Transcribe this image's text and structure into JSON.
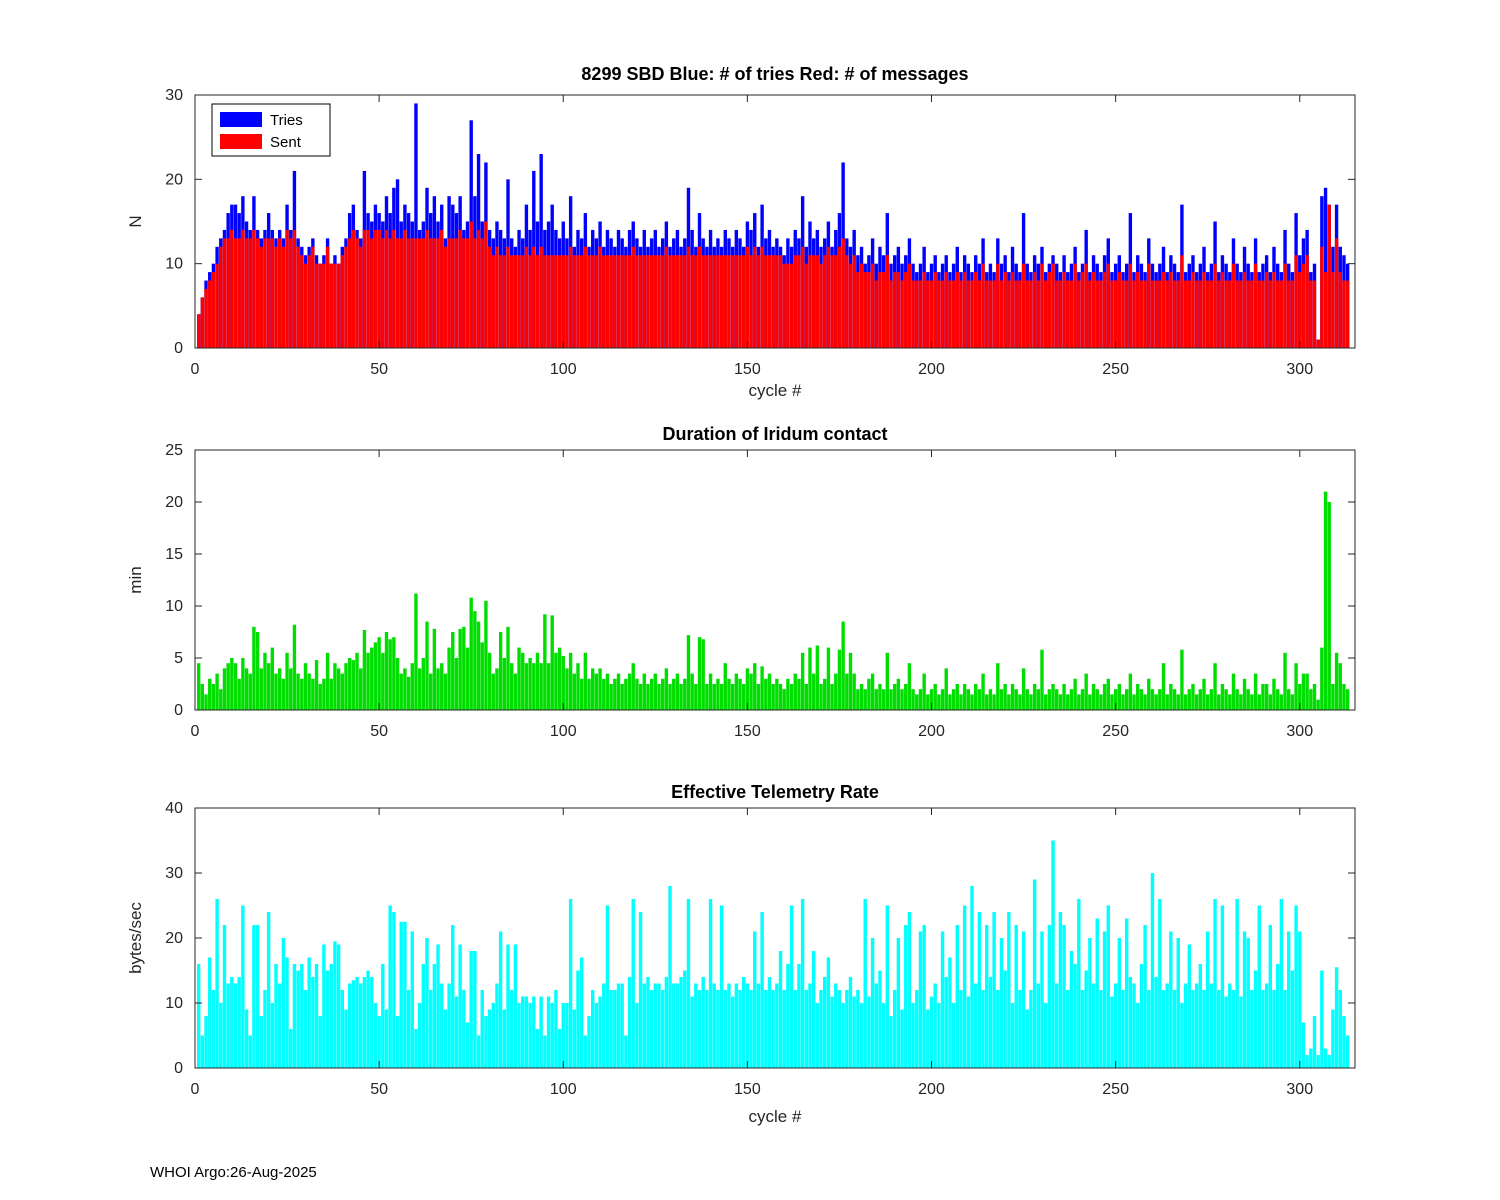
{
  "footer": {
    "text": "WHOI Argo:26-Aug-2025"
  },
  "colors": {
    "tries": "#0000ff",
    "sent": "#ff0000",
    "duration": "#00dd00",
    "rate": "#00ffff",
    "axis": "#262626"
  },
  "chart_data": [
    {
      "type": "bar",
      "title": "8299 SBD  Blue: # of tries   Red: # of messages",
      "xlabel": "cycle #",
      "ylabel": "N",
      "xlim": [
        0,
        315
      ],
      "ylim": [
        0,
        30
      ],
      "xticks": [
        0,
        50,
        100,
        150,
        200,
        250,
        300
      ],
      "yticks": [
        0,
        10,
        20,
        30
      ],
      "grid": false,
      "legend": {
        "position": "northwest",
        "entries": [
          {
            "label": "Tries",
            "color": "#0000ff"
          },
          {
            "label": "Sent",
            "color": "#ff0000"
          }
        ]
      },
      "x_start": 1,
      "series": [
        {
          "name": "Tries",
          "color": "#0000ff",
          "values": [
            4,
            6,
            8,
            9,
            10,
            12,
            13,
            14,
            16,
            17,
            17,
            16,
            18,
            15,
            14,
            18,
            14,
            13,
            14,
            16,
            14,
            13,
            14,
            13,
            17,
            14,
            21,
            13,
            12,
            11,
            12,
            13,
            11,
            10,
            11,
            13,
            10,
            11,
            10,
            12,
            13,
            16,
            17,
            14,
            13,
            21,
            16,
            15,
            17,
            16,
            15,
            18,
            16,
            19,
            20,
            15,
            17,
            16,
            15,
            29,
            14,
            15,
            19,
            16,
            18,
            15,
            17,
            13,
            18,
            17,
            16,
            18,
            14,
            15,
            27,
            18,
            23,
            15,
            22,
            14,
            13,
            15,
            14,
            13,
            20,
            13,
            12,
            14,
            13,
            17,
            14,
            21,
            15,
            23,
            14,
            15,
            17,
            14,
            13,
            15,
            13,
            18,
            12,
            14,
            13,
            16,
            12,
            14,
            13,
            15,
            12,
            14,
            13,
            12,
            14,
            13,
            12,
            14,
            15,
            13,
            12,
            14,
            12,
            13,
            14,
            12,
            13,
            15,
            12,
            13,
            14,
            12,
            13,
            19,
            14,
            12,
            16,
            13,
            12,
            14,
            12,
            13,
            12,
            14,
            13,
            12,
            14,
            13,
            12,
            15,
            14,
            16,
            12,
            17,
            13,
            14,
            12,
            13,
            12,
            11,
            13,
            12,
            14,
            13,
            18,
            12,
            15,
            13,
            14,
            12,
            13,
            15,
            12,
            14,
            16,
            22,
            13,
            12,
            14,
            11,
            12,
            10,
            11,
            13,
            10,
            12,
            11,
            16,
            10,
            11,
            12,
            10,
            11,
            13,
            10,
            9,
            10,
            12,
            9,
            10,
            11,
            9,
            10,
            11,
            9,
            10,
            12,
            9,
            11,
            10,
            9,
            11,
            10,
            13,
            9,
            10,
            9,
            13,
            10,
            11,
            9,
            12,
            10,
            9,
            16,
            10,
            9,
            11,
            10,
            12,
            9,
            10,
            11,
            10,
            9,
            11,
            9,
            10,
            12,
            9,
            10,
            14,
            9,
            11,
            10,
            9,
            11,
            13,
            9,
            10,
            11,
            9,
            10,
            16,
            9,
            11,
            10,
            9,
            13,
            10,
            9,
            10,
            12,
            9,
            11,
            10,
            9,
            17,
            9,
            10,
            11,
            9,
            10,
            12,
            9,
            10,
            15,
            9,
            11,
            10,
            9,
            13,
            10,
            9,
            12,
            10,
            9,
            13,
            9,
            10,
            11,
            9,
            12,
            10,
            9,
            14,
            10,
            9,
            16,
            11,
            13,
            14,
            9,
            10,
            1,
            18,
            19,
            17,
            12,
            17,
            12,
            11,
            10
          ]
        },
        {
          "name": "Sent",
          "color": "#ff0000",
          "values": [
            4,
            6,
            7,
            8,
            9,
            10,
            12,
            13,
            13,
            14,
            13,
            13,
            14,
            13,
            13,
            14,
            13,
            12,
            13,
            13,
            13,
            12,
            13,
            12,
            14,
            13,
            14,
            12,
            11,
            10,
            11,
            12,
            10,
            10,
            10,
            12,
            10,
            10,
            10,
            11,
            12,
            13,
            14,
            13,
            12,
            14,
            14,
            13,
            14,
            14,
            13,
            14,
            13,
            14,
            13,
            13,
            14,
            13,
            13,
            13,
            13,
            13,
            14,
            13,
            13,
            13,
            14,
            12,
            13,
            13,
            13,
            14,
            13,
            13,
            15,
            13,
            14,
            13,
            15,
            12,
            11,
            12,
            11,
            11,
            12,
            11,
            11,
            11,
            11,
            12,
            11,
            12,
            11,
            12,
            11,
            11,
            11,
            11,
            11,
            11,
            11,
            12,
            11,
            11,
            11,
            12,
            11,
            11,
            11,
            12,
            11,
            11,
            11,
            11,
            11,
            11,
            11,
            11,
            12,
            11,
            11,
            11,
            11,
            11,
            11,
            11,
            11,
            12,
            11,
            11,
            11,
            11,
            11,
            12,
            11,
            11,
            12,
            11,
            11,
            11,
            11,
            11,
            11,
            11,
            11,
            11,
            11,
            11,
            11,
            12,
            11,
            12,
            11,
            12,
            11,
            11,
            11,
            11,
            11,
            10,
            10,
            10,
            11,
            11,
            12,
            10,
            11,
            11,
            11,
            10,
            11,
            12,
            11,
            11,
            12,
            13,
            11,
            10,
            11,
            9,
            10,
            9,
            9,
            10,
            8,
            9,
            9,
            11,
            8,
            9,
            9,
            8,
            9,
            10,
            8,
            8,
            8,
            9,
            8,
            8,
            9,
            8,
            8,
            9,
            8,
            8,
            9,
            8,
            9,
            8,
            8,
            9,
            8,
            10,
            8,
            8,
            8,
            10,
            8,
            9,
            8,
            9,
            8,
            8,
            10,
            8,
            8,
            9,
            8,
            10,
            8,
            9,
            10,
            8,
            8,
            9,
            8,
            8,
            10,
            8,
            9,
            10,
            8,
            9,
            8,
            8,
            9,
            10,
            8,
            8,
            9,
            8,
            8,
            10,
            8,
            9,
            8,
            8,
            10,
            8,
            8,
            8,
            9,
            8,
            9,
            8,
            8,
            11,
            8,
            8,
            9,
            8,
            8,
            9,
            8,
            8,
            10,
            8,
            9,
            8,
            8,
            10,
            8,
            8,
            9,
            8,
            8,
            10,
            8,
            8,
            9,
            8,
            9,
            8,
            8,
            10,
            8,
            8,
            11,
            9,
            10,
            11,
            8,
            8,
            1,
            12,
            9,
            17,
            9,
            13,
            9,
            8,
            8
          ]
        }
      ]
    },
    {
      "type": "bar",
      "title": "Duration of Iridum contact",
      "xlabel": "",
      "ylabel": "min",
      "xlim": [
        0,
        315
      ],
      "ylim": [
        0,
        25
      ],
      "xticks": [
        0,
        50,
        100,
        150,
        200,
        250,
        300
      ],
      "yticks": [
        0,
        5,
        10,
        15,
        20,
        25
      ],
      "grid": false,
      "x_start": 1,
      "color": "#00dd00",
      "name": "duration",
      "values": [
        4.5,
        2.5,
        1.5,
        3,
        2.5,
        3.5,
        2,
        4,
        4.5,
        5,
        4.5,
        3,
        5,
        4,
        3.5,
        8,
        7.5,
        4,
        5.5,
        4.5,
        6,
        3.5,
        4,
        3,
        5.5,
        4,
        8.2,
        3.5,
        3,
        4.5,
        3.5,
        3,
        4.8,
        2.5,
        3,
        5.5,
        3,
        4.5,
        4,
        3.5,
        4.5,
        5,
        4.8,
        5.5,
        4,
        7.7,
        5.5,
        6,
        6.5,
        7,
        5.5,
        7.5,
        6.8,
        7,
        5,
        3.5,
        4,
        3.2,
        4.5,
        11.2,
        4,
        5,
        8.5,
        3.5,
        7.8,
        4,
        4.5,
        3.5,
        6,
        7.5,
        5,
        7.8,
        8,
        6,
        10.8,
        9.5,
        8.5,
        6.5,
        10.5,
        5.5,
        3.5,
        4,
        7.5,
        5,
        8,
        4.5,
        3.5,
        6,
        5.5,
        4.5,
        5,
        4.5,
        5.5,
        4.5,
        9.2,
        4.5,
        9.1,
        5.5,
        6,
        5.2,
        4,
        5.5,
        3.5,
        4.5,
        3,
        5.5,
        3,
        4,
        3.5,
        4,
        3,
        3.5,
        2.5,
        3,
        3.5,
        2.5,
        3,
        3.5,
        4.5,
        3,
        2.5,
        3.5,
        2.5,
        3,
        3.5,
        2.5,
        3,
        4,
        2.5,
        3,
        3.5,
        2.5,
        3,
        7.2,
        3.5,
        2.5,
        7,
        6.8,
        2.5,
        3.5,
        2.5,
        3,
        2.5,
        4.5,
        3,
        2.5,
        3.5,
        3,
        2.5,
        4,
        3.5,
        4.5,
        2.5,
        4.2,
        3,
        3.5,
        2.5,
        3,
        2.5,
        2,
        3,
        2.5,
        3.5,
        3,
        5.5,
        2.5,
        6,
        3.5,
        6.2,
        2.5,
        3,
        6,
        2.5,
        3.5,
        5.8,
        8.5,
        3.5,
        5.5,
        3.5,
        2,
        2.5,
        2,
        3,
        3.5,
        2,
        2.5,
        2,
        5.5,
        2,
        2.5,
        3,
        2,
        2.5,
        4.5,
        2,
        1.5,
        2,
        3.5,
        1.5,
        2,
        2.5,
        1.5,
        2,
        4,
        1.5,
        2,
        2.5,
        1.5,
        2.5,
        2,
        1.5,
        2.5,
        2,
        3.5,
        1.5,
        2,
        1.5,
        4.5,
        2,
        2.5,
        1.5,
        2.5,
        2,
        1.5,
        4,
        2,
        1.5,
        2.5,
        2,
        5.8,
        1.5,
        2,
        2.5,
        2,
        1.5,
        2.5,
        1.5,
        2,
        3,
        1.5,
        2,
        3.5,
        1.5,
        2.5,
        2,
        1.5,
        2.5,
        3,
        1.5,
        2,
        2.5,
        1.5,
        2,
        3.5,
        1.5,
        2.5,
        2,
        1.5,
        3,
        2,
        1.5,
        2,
        4.5,
        1.5,
        2.5,
        2,
        1.5,
        5.8,
        1.5,
        2,
        2.5,
        1.5,
        2,
        3,
        1.5,
        2,
        4.5,
        1.5,
        2.5,
        2,
        1.5,
        3.5,
        2,
        1.5,
        3,
        2,
        1.5,
        3.5,
        1.5,
        2.5,
        2.5,
        1.5,
        3,
        2,
        1.5,
        5.5,
        2,
        1.5,
        4.5,
        2.5,
        3.5,
        3.5,
        2,
        2.5,
        1,
        6,
        21,
        20,
        2.5,
        5.5,
        4.5,
        2.5,
        2
      ]
    },
    {
      "type": "bar",
      "title": "Effective Telemetry Rate",
      "xlabel": "cycle #",
      "ylabel": "bytes/sec",
      "xlim": [
        0,
        315
      ],
      "ylim": [
        0,
        40
      ],
      "xticks": [
        0,
        50,
        100,
        150,
        200,
        250,
        300
      ],
      "yticks": [
        0,
        10,
        20,
        30,
        40
      ],
      "grid": false,
      "x_start": 1,
      "color": "#00ffff",
      "name": "rate",
      "values": [
        16,
        5,
        8,
        17,
        12,
        26,
        10,
        22,
        13,
        14,
        13,
        14,
        25,
        9,
        5,
        22,
        22,
        8,
        12,
        24,
        10,
        16,
        13,
        20,
        17,
        6,
        16,
        15,
        16,
        12,
        17,
        14,
        16,
        8,
        19,
        15,
        16,
        19.5,
        19,
        12,
        9,
        13,
        13.5,
        14,
        13,
        14,
        15,
        14,
        10,
        8,
        16,
        9,
        25,
        24,
        8,
        22.5,
        22.5,
        12,
        21,
        6,
        10,
        16,
        20,
        12,
        16,
        19,
        13,
        9,
        13,
        22,
        11,
        19,
        12,
        7,
        18,
        18,
        5,
        12,
        8,
        9,
        10,
        13,
        21,
        9,
        19,
        12,
        19,
        10,
        11,
        11,
        10,
        11,
        6,
        11,
        5,
        11,
        10,
        12,
        6,
        10,
        10,
        26,
        9,
        15,
        17,
        5,
        8,
        12,
        10,
        11,
        13,
        25,
        12,
        12,
        13,
        13,
        5,
        14,
        26,
        10,
        24,
        13,
        14,
        12,
        13,
        13,
        12,
        14,
        28,
        13,
        13,
        14,
        15,
        26,
        11,
        13,
        12,
        14,
        12,
        26,
        13,
        12,
        25,
        12,
        13,
        11,
        13,
        12,
        14,
        13,
        12,
        21,
        13,
        24,
        12,
        14,
        12,
        13,
        18,
        12,
        16,
        25,
        12,
        16,
        26,
        12,
        13,
        18,
        10,
        12,
        14,
        17,
        11,
        13,
        12,
        10,
        12,
        14,
        11,
        12,
        10,
        26,
        11,
        20,
        13,
        15,
        10,
        25,
        8,
        12,
        20,
        9,
        22,
        24,
        10,
        12,
        21,
        22,
        9,
        11,
        13,
        10,
        21,
        14,
        17,
        10,
        22,
        12,
        25,
        11,
        28,
        13,
        24,
        12,
        22,
        14,
        24,
        12,
        20,
        15,
        24,
        10,
        22,
        12,
        21,
        9,
        12,
        29,
        13,
        21,
        10,
        22,
        35,
        13,
        24,
        22,
        12,
        18,
        16,
        26,
        12,
        15,
        20,
        13,
        23,
        12,
        21,
        25,
        11,
        13,
        20,
        12,
        23,
        14,
        13,
        10,
        16,
        22,
        12,
        30,
        14,
        26,
        12,
        13,
        21,
        12,
        20,
        10,
        13,
        19,
        12,
        13,
        16,
        12,
        21,
        13,
        26,
        12,
        25,
        11,
        13,
        12,
        26,
        11,
        21,
        20,
        12,
        15,
        25,
        12,
        13,
        22,
        12,
        16,
        26,
        12,
        21,
        15,
        25,
        21,
        7,
        2,
        3,
        8,
        2,
        15,
        3,
        2,
        9,
        15.5,
        12,
        8,
        5
      ]
    }
  ]
}
